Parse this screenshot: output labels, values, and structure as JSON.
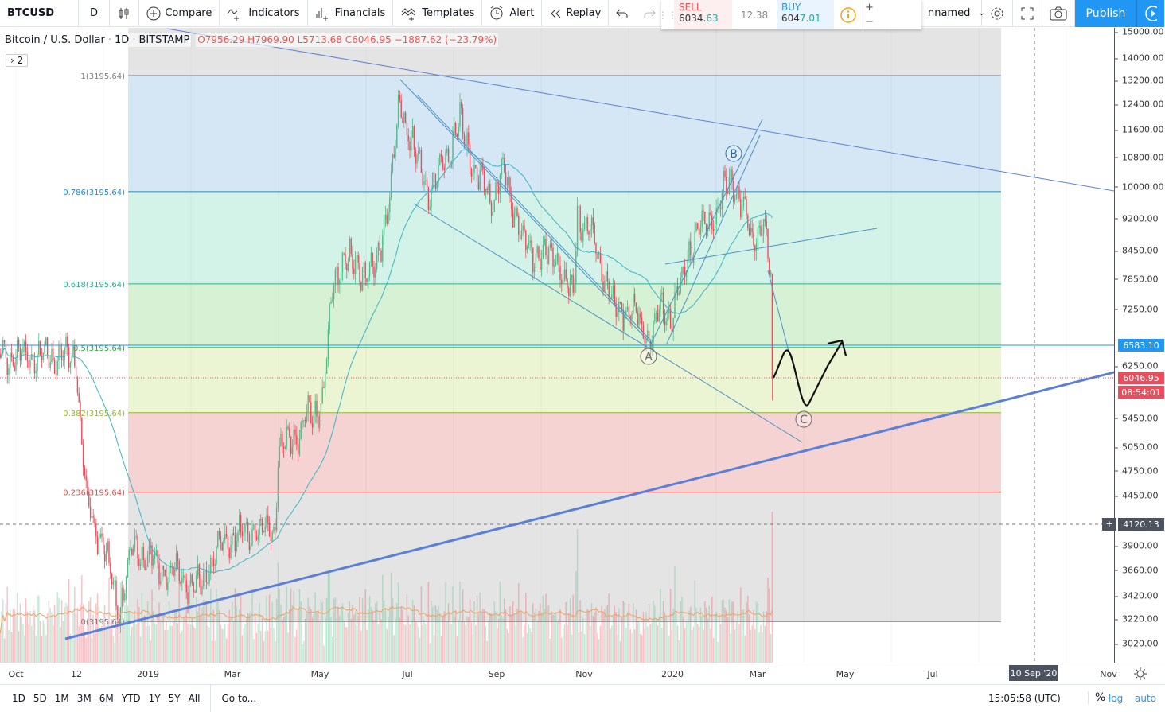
{
  "toolbar": {
    "symbol": "BTCUSD",
    "interval": "D",
    "compare": "Compare",
    "indicators": "Indicators",
    "financials": "Financials",
    "templates": "Templates",
    "alert": "Alert",
    "replay": "Replay",
    "layout_name": "nnamed",
    "publish": "Publish"
  },
  "trade": {
    "sell_label": "SELL",
    "sell_price_main": "6034.",
    "sell_price_big": "63",
    "spread": "12.38",
    "buy_label": "BUY",
    "buy_price_main": "604",
    "buy_price_big": "7.01"
  },
  "legend": {
    "title": "Bitcoin / U.S. Dollar",
    "interval": "1D",
    "exchange": "BITSTAMP",
    "ohlc": "O7956.29 H7969.90 L5713.68 C6046.95 −1887.62 (−23.79%)",
    "collapsed_count": "› 2"
  },
  "colors": {
    "up": "#53b987",
    "down": "#eb4d5c",
    "ma": "#3bb3c3",
    "accent": "#2196f3",
    "trend": "#5b7fd6",
    "fib_line": "#787b86"
  },
  "chart_data": {
    "type": "candlestick",
    "scale": "log",
    "ylim": [
      3020,
      15000
    ],
    "keyframes": [
      [
        "2018-09-20",
        6450
      ],
      [
        "2018-11-12",
        6400
      ],
      [
        "2018-11-14",
        5600
      ],
      [
        "2018-11-20",
        4300
      ],
      [
        "2018-12-01",
        3900
      ],
      [
        "2018-12-12",
        3300
      ],
      [
        "2018-12-21",
        3900
      ],
      [
        "2019-01-09",
        3700
      ],
      [
        "2019-02-06",
        3500
      ],
      [
        "2019-02-22",
        3950
      ],
      [
        "2019-03-31",
        4100
      ],
      [
        "2019-04-02",
        4950
      ],
      [
        "2019-05-03",
        5700
      ],
      [
        "2019-05-11",
        7800
      ],
      [
        "2019-05-17",
        8300
      ],
      [
        "2019-06-08",
        7900
      ],
      [
        "2019-06-19",
        9800
      ],
      [
        "2019-06-26",
        12500
      ],
      [
        "2019-07-06",
        11000
      ],
      [
        "2019-07-17",
        9800
      ],
      [
        "2019-08-07",
        11800
      ],
      [
        "2019-08-19",
        10300
      ],
      [
        "2019-08-30",
        9600
      ],
      [
        "2019-09-05",
        10400
      ],
      [
        "2019-09-24",
        8400
      ],
      [
        "2019-10-14",
        8300
      ],
      [
        "2019-10-25",
        7400
      ],
      [
        "2019-10-28",
        9300
      ],
      [
        "2019-11-08",
        8800
      ],
      [
        "2019-11-22",
        7300
      ],
      [
        "2019-12-03",
        7300
      ],
      [
        "2019-12-17",
        6700
      ],
      [
        "2019-12-25",
        7250
      ],
      [
        "2020-01-02",
        7100
      ],
      [
        "2020-01-16",
        8700
      ],
      [
        "2020-02-02",
        9400
      ],
      [
        "2020-02-13",
        10300
      ],
      [
        "2020-02-27",
        8700
      ],
      [
        "2020-03-06",
        9100
      ],
      [
        "2020-03-11",
        7900
      ],
      [
        "2020-03-12",
        6047
      ]
    ],
    "last": {
      "open": 7956.29,
      "high": 7969.9,
      "low": 5713.68,
      "close": 6046.95
    },
    "price_ticks": [
      "15000.00",
      "14000.00",
      "13200.00",
      "12400.00",
      "11600.00",
      "10800.00",
      "10000.00",
      "9200.00",
      "8450.00",
      "7850.00",
      "7250.00",
      "6250.00",
      "5450.00",
      "5050.00",
      "4750.00",
      "4450.00",
      "3900.00",
      "3660.00",
      "3420.00",
      "3220.00",
      "3020.00"
    ],
    "time_ticks": [
      "Oct",
      "12",
      "2019",
      "Mar",
      "May",
      "Jul",
      "Sep",
      "Nov",
      "2020",
      "Mar",
      "May",
      "Jul",
      "Nov"
    ],
    "fib": [
      {
        "level": "1(3195.64)",
        "price": 13375
      },
      {
        "level": "0.786(3195.64)",
        "price": 9870
      },
      {
        "level": "0.618(3195.64)",
        "price": 7750
      },
      {
        "level": "0.5(3195.64)",
        "price": 6560
      },
      {
        "level": "0.382(3195.64)",
        "price": 5530
      },
      {
        "level": "0.236(3195.64)",
        "price": 4490
      },
      {
        "level": "0(3195.64)",
        "price": 3200
      }
    ],
    "wave_labels": [
      "A",
      "B",
      "C"
    ],
    "tags": {
      "hline": "6583.10",
      "last_price": "6046.95",
      "countdown": "08:54:01",
      "crosshair_price": "4120.13",
      "crosshair_time": "10 Sep '20"
    }
  },
  "bottom": {
    "ranges": [
      "1D",
      "5D",
      "1M",
      "3M",
      "6M",
      "YTD",
      "1Y",
      "5Y",
      "All"
    ],
    "goto": "Go to...",
    "clock": "15:05:58 (UTC)",
    "percent": "%",
    "log": "log",
    "auto": "auto"
  }
}
